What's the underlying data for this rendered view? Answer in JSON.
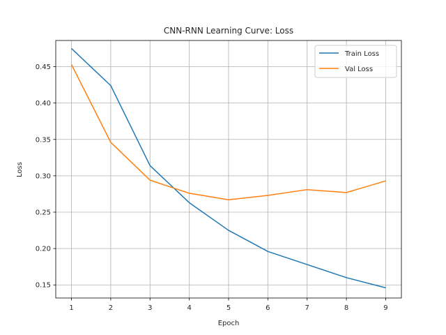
{
  "chart_data": {
    "type": "line",
    "title": "CNN-RNN Learning Curve: Loss",
    "xlabel": "Epoch",
    "ylabel": "Loss",
    "x": [
      1,
      2,
      3,
      4,
      5,
      6,
      7,
      8,
      9
    ],
    "xticks": [
      "1",
      "2",
      "3",
      "4",
      "5",
      "6",
      "7",
      "8",
      "9"
    ],
    "yticks": [
      "0.15",
      "0.20",
      "0.25",
      "0.30",
      "0.35",
      "0.40",
      "0.45"
    ],
    "xlim": [
      0.6,
      9.4
    ],
    "ylim": [
      0.132,
      0.486
    ],
    "grid": true,
    "legend_position": "top-right",
    "series": [
      {
        "name": "Train Loss",
        "color": "#1f77b4",
        "values": [
          0.475,
          0.424,
          0.314,
          0.263,
          0.225,
          0.196,
          0.178,
          0.16,
          0.146
        ]
      },
      {
        "name": "Val Loss",
        "color": "#ff7f0e",
        "values": [
          0.453,
          0.346,
          0.294,
          0.276,
          0.267,
          0.273,
          0.281,
          0.277,
          0.293
        ]
      }
    ]
  }
}
